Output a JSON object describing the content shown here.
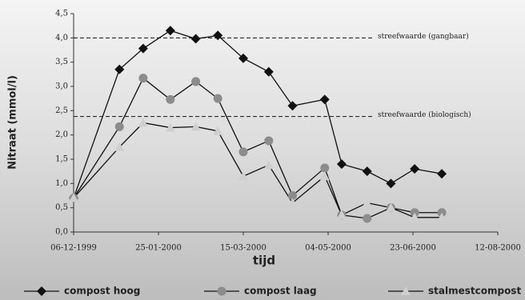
{
  "chart_data": {
    "type": "line",
    "x_label": "tijd",
    "y_label": "Nitraat (mmol/l)",
    "x": [
      "06-12-1999",
      "02-01-2000",
      "16-01-2000",
      "01-02-2000",
      "16-02-2000",
      "29-02-2000",
      "15-03-2000",
      "30-03-2000",
      "13-04-2000",
      "02-05-2000",
      "12-05-2000",
      "27-05-2000",
      "10-06-2000",
      "24-06-2000",
      "10-07-2000"
    ],
    "series": [
      {
        "name": "compost hoog",
        "color": "#111111",
        "marker": "diamond",
        "values": [
          0.7,
          3.35,
          3.78,
          4.15,
          3.98,
          4.05,
          3.58,
          3.3,
          2.6,
          2.73,
          1.4,
          1.25,
          1.0,
          1.3,
          1.2
        ]
      },
      {
        "name": "compost laag",
        "color": "#8c8c8c",
        "marker": "circle",
        "values": [
          0.7,
          2.17,
          3.17,
          2.73,
          3.1,
          2.75,
          1.65,
          1.88,
          0.75,
          1.32,
          0.35,
          0.28,
          0.5,
          0.4,
          0.4
        ]
      },
      {
        "name": "stalmestcompost",
        "color": "#cfcfcf",
        "marker": "triangle",
        "values": [
          0.7,
          1.75,
          2.25,
          2.15,
          2.17,
          2.08,
          1.15,
          1.38,
          0.6,
          1.15,
          0.35,
          0.6,
          0.5,
          0.3,
          0.3
        ]
      }
    ],
    "line_color": "#111111",
    "reference_lines": [
      {
        "value": 4.0,
        "label": "streefwaarde (gangbaar)"
      },
      {
        "value": 2.38,
        "label": "streefwaarde (biologisch)"
      }
    ],
    "xlim": [
      "06-12-1999",
      "12-08-2000"
    ],
    "xticks": [
      "06-12-1999",
      "25-01-2000",
      "15-03-2000",
      "04-05-2000",
      "23-06-2000",
      "12-08-2000"
    ],
    "ylim": [
      0,
      4.5
    ],
    "yticks": [
      {
        "value": 0,
        "label": "0,0"
      },
      {
        "value": 0.5,
        "label": "0,5"
      },
      {
        "value": 1,
        "label": "1,0"
      },
      {
        "value": 1.5,
        "label": "1,5"
      },
      {
        "value": 2,
        "label": "2,0"
      },
      {
        "value": 2.5,
        "label": "2,5"
      },
      {
        "value": 3,
        "label": "3,0"
      },
      {
        "value": 3.5,
        "label": "3,5"
      },
      {
        "value": 4,
        "label": "4,0"
      },
      {
        "value": 4.5,
        "label": "4,5"
      }
    ],
    "legend_position": "bottom"
  }
}
